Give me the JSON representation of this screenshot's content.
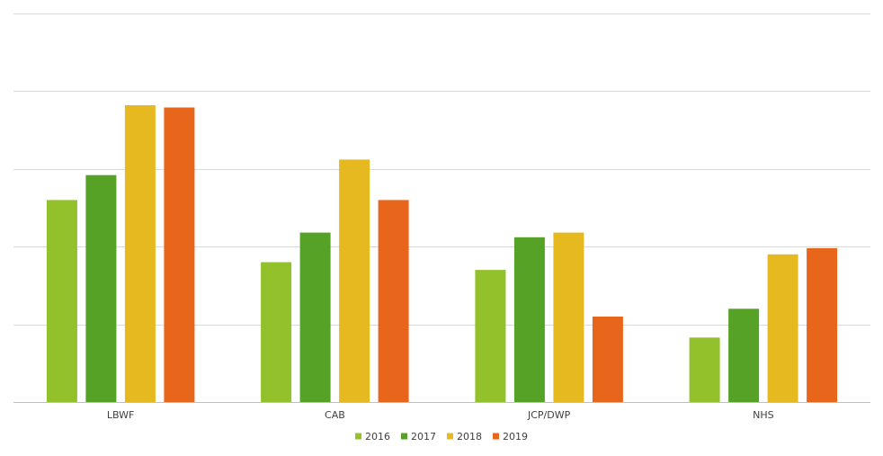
{
  "chart_data": {
    "type": "bar",
    "title": "",
    "xlabel": "",
    "ylabel": "",
    "categories": [
      "LBWF",
      "CAB",
      "JCP/DWP",
      "NHS"
    ],
    "series": [
      {
        "name": "2016",
        "color": "#92c12b",
        "values": [
          26,
          18,
          17,
          8.3
        ]
      },
      {
        "name": "2017",
        "color": "#56a227",
        "values": [
          29.2,
          21.8,
          21.2,
          12
        ]
      },
      {
        "name": "2018",
        "color": "#e6b920",
        "values": [
          38.2,
          31.2,
          21.8,
          19
        ]
      },
      {
        "name": "2019",
        "color": "#e8651c",
        "values": [
          37.9,
          26,
          11,
          19.8
        ]
      }
    ],
    "ylim": [
      0,
      50
    ],
    "ytick_step": 10,
    "grid": true,
    "ytick_labels_shown": false,
    "legend_position": "bottom"
  }
}
